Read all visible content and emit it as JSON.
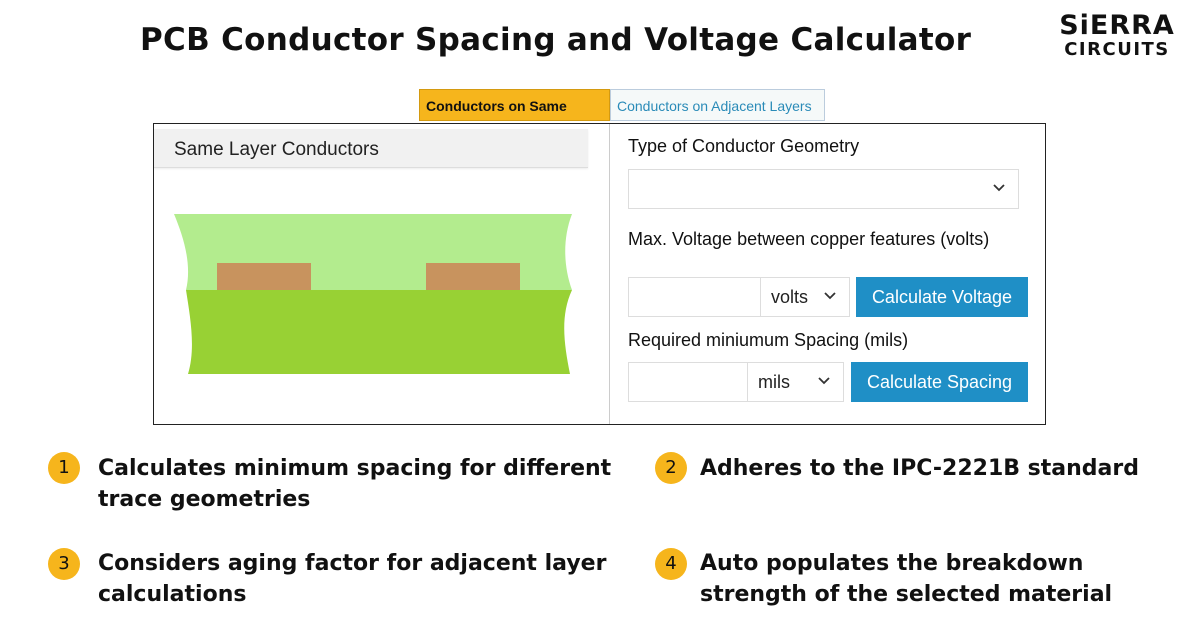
{
  "page": {
    "title": "PCB Conductor Spacing and Voltage Calculator"
  },
  "logo": {
    "line1": "SiERRA",
    "line2": "CIRCUITS"
  },
  "tabs": [
    {
      "label": "Conductors on Same Layer",
      "active": true
    },
    {
      "label": "Conductors on Adjacent Layers",
      "active": false
    }
  ],
  "left_panel": {
    "header": "Same Layer Conductors"
  },
  "form": {
    "geometry_label": "Type of Conductor Geometry",
    "geometry_value": "",
    "voltage_label": "Max. Voltage between copper features (volts)",
    "voltage_value": "",
    "voltage_unit": "volts",
    "calc_voltage_label": "Calculate Voltage",
    "spacing_label": "Required miniumum Spacing (mils)",
    "spacing_value": "",
    "spacing_unit": "mils",
    "calc_spacing_label": "Calculate Spacing"
  },
  "features": [
    {
      "number": "1",
      "text": "Calculates minimum spacing for different trace geometries"
    },
    {
      "number": "2",
      "text": "Adheres to the IPC-2221B standard"
    },
    {
      "number": "3",
      "text": "Considers aging factor for adjacent layer calculations"
    },
    {
      "number": "4",
      "text": "Auto populates the breakdown strength of the selected material"
    }
  ],
  "colors": {
    "accent": "#f6b51c",
    "button": "#1f8fc6",
    "tab_inactive_text": "#2a8bb8",
    "pcb_light": "#b3ec8e",
    "pcb_dark": "#98d134",
    "copper": "#c8935e"
  },
  "icons": {
    "dropdown": "chevron-down-icon"
  }
}
